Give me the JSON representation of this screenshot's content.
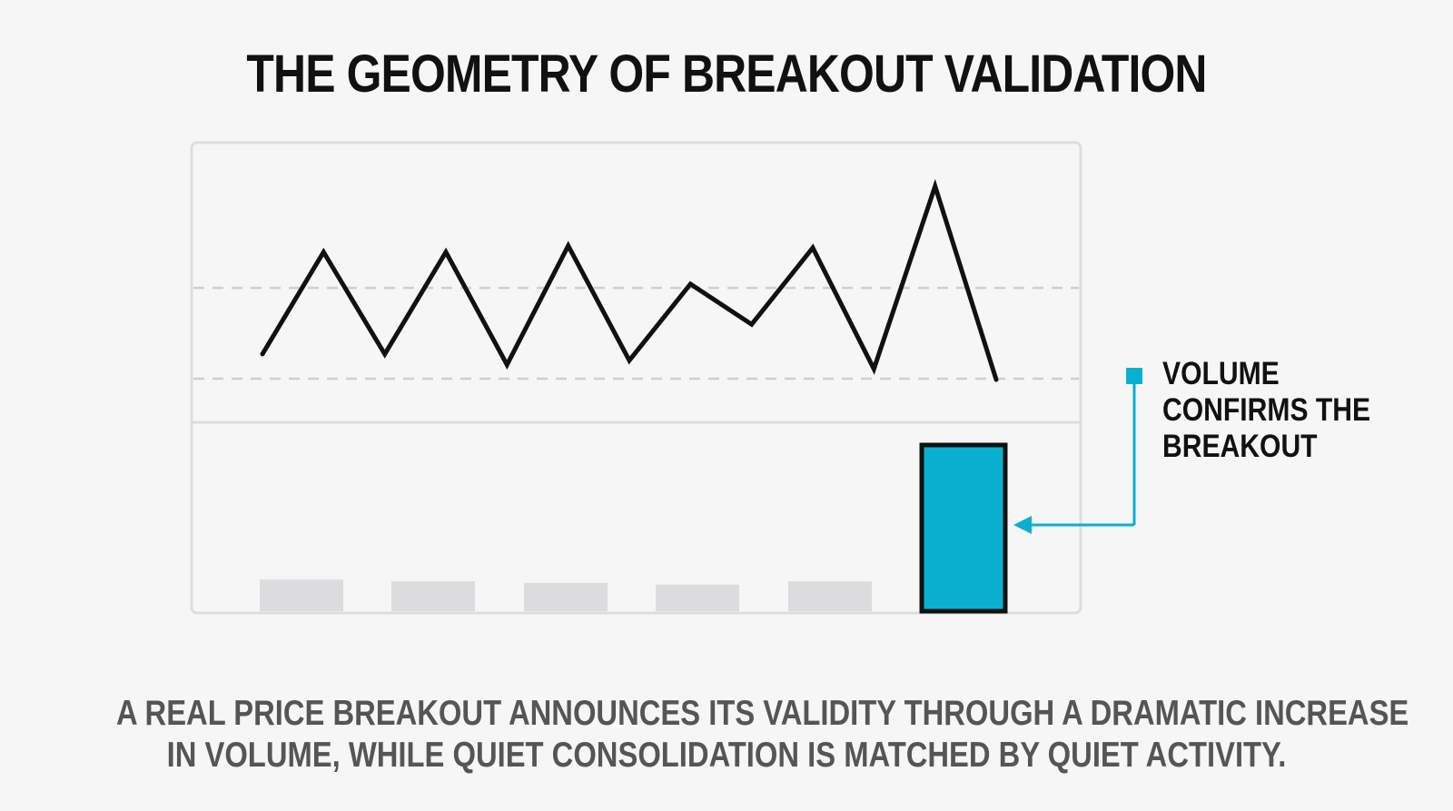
{
  "title": "THE GEOMETRY OF BREAKOUT VALIDATION",
  "callout": {
    "lines": [
      "VOLUME",
      "CONFIRMS THE",
      "BREAKOUT"
    ]
  },
  "caption": {
    "lines": [
      "A REAL PRICE BREAKOUT ANNOUNCES ITS VALIDITY THROUGH A DRAMATIC INCREASE",
      "IN VOLUME, WHILE QUIET CONSOLIDATION IS MATCHED BY QUIET ACTIVITY."
    ]
  },
  "colors": {
    "accent": "#0ab0d0",
    "quiet_volume": "#dcdcdf",
    "price_line": "#111111",
    "frame": "#dddddd",
    "dashed_band": "#cfcfcf",
    "background": "#f6f6f6"
  },
  "chart_data": {
    "type": "line",
    "x": [
      0,
      1,
      2,
      3,
      4,
      5,
      6,
      7,
      8,
      9,
      10,
      11,
      12
    ],
    "price": [
      0.88,
      0.4,
      0.88,
      0.4,
      0.93,
      0.37,
      0.91,
      0.55,
      0.74,
      0.38,
      0.95,
      0.09,
      1.0
    ],
    "price_note_scale": "relative units",
    "resistance": 0.38,
    "support": 0.96,
    "volume": {
      "type": "bar",
      "categories": [
        "1",
        "2",
        "3",
        "4",
        "5",
        "6"
      ],
      "values": [
        0.19,
        0.18,
        0.17,
        0.16,
        0.18,
        1.0
      ],
      "highlighted_index": 5
    },
    "grid": false,
    "legend": "none"
  }
}
